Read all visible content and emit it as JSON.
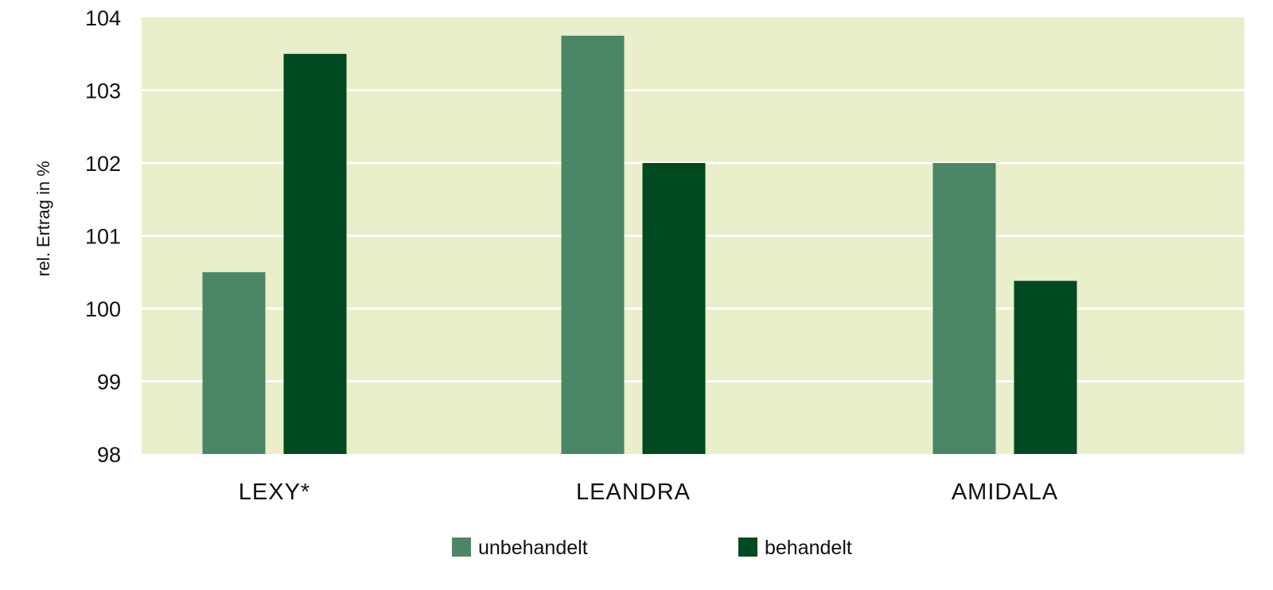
{
  "chart_data": {
    "type": "bar",
    "title": "",
    "xlabel": "",
    "ylabel": "rel. Ertrag in %",
    "categories": [
      "LEXY*",
      "LEANDRA",
      "AMIDALA"
    ],
    "series": [
      {
        "name": "unbehandelt",
        "color": "#4b8667",
        "values": [
          100.5,
          103.75,
          102.0
        ]
      },
      {
        "name": "behandelt",
        "color": "#004a22",
        "values": [
          103.5,
          102.0,
          100.38
        ]
      }
    ],
    "ylim": [
      98,
      104
    ],
    "yticks": [
      "98",
      "99",
      "100",
      "101",
      "102",
      "103",
      "104"
    ],
    "grid": true,
    "legend_position": "bottom-center",
    "plot_background": "#e8efca",
    "grid_color": "#ffffff"
  }
}
